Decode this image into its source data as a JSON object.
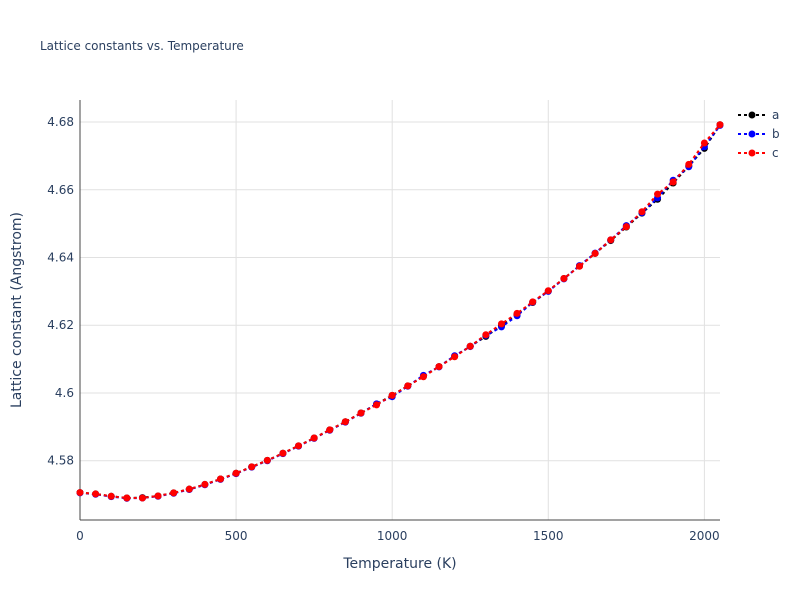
{
  "chart_data": {
    "type": "line",
    "title": "Lattice constants vs. Temperature",
    "xlabel": "Temperature (K)",
    "ylabel": "Lattice constant (Angstrom)",
    "xlim": [
      0,
      2050
    ],
    "ylim": [
      4.5625,
      4.6865
    ],
    "x_ticks": [
      0,
      500,
      1000,
      1500,
      2000
    ],
    "y_ticks": [
      4.58,
      4.6,
      4.62,
      4.64,
      4.66,
      4.68
    ],
    "x_tick_labels": [
      "0",
      "500",
      "1000",
      "1500",
      "2000"
    ],
    "y_tick_labels": [
      "4.58",
      "4.6",
      "4.62",
      "4.64",
      "4.66",
      "4.68"
    ],
    "grid": true,
    "legend_position": "top-right",
    "x": [
      0,
      50,
      100,
      150,
      200,
      250,
      300,
      350,
      400,
      450,
      500,
      550,
      600,
      650,
      700,
      750,
      800,
      850,
      900,
      950,
      1000,
      1050,
      1100,
      1150,
      1200,
      1250,
      1300,
      1350,
      1400,
      1450,
      1500,
      1550,
      1600,
      1650,
      1700,
      1750,
      1800,
      1850,
      1900,
      1950,
      2000,
      2050
    ],
    "series": [
      {
        "name": "a",
        "color": "#000000",
        "values": [
          4.5706,
          4.5702,
          4.5695,
          4.569,
          4.5691,
          4.5696,
          4.5705,
          4.5716,
          4.573,
          4.5746,
          4.5763,
          4.5782,
          4.5801,
          4.5822,
          4.5844,
          4.5867,
          4.5891,
          4.5915,
          4.5941,
          4.5967,
          4.5993,
          4.6021,
          4.6049,
          4.6078,
          4.6108,
          4.6138,
          4.6167,
          4.6199,
          4.6233,
          4.6267,
          4.6301,
          4.6338,
          4.6375,
          4.6412,
          4.645,
          4.649,
          4.6531,
          4.6572,
          4.662,
          4.667,
          4.6722,
          4.6792
        ]
      },
      {
        "name": "b",
        "color": "#0000ff",
        "values": [
          4.5705,
          4.5701,
          4.5694,
          4.5689,
          4.569,
          4.5695,
          4.5704,
          4.5715,
          4.5729,
          4.5745,
          4.5762,
          4.5781,
          4.58,
          4.5821,
          4.5843,
          4.5866,
          4.589,
          4.5914,
          4.594,
          4.5968,
          4.5989,
          4.602,
          4.6052,
          4.6077,
          4.611,
          4.6137,
          4.617,
          4.6195,
          4.6228,
          4.6268,
          4.63,
          4.6337,
          4.6376,
          4.6413,
          4.6452,
          4.6494,
          4.6532,
          4.6576,
          4.6628,
          4.6668,
          4.6727,
          4.679
        ]
      },
      {
        "name": "c",
        "color": "#ff0000",
        "values": [
          4.5706,
          4.5702,
          4.5695,
          4.569,
          4.569,
          4.5696,
          4.5705,
          4.5716,
          4.573,
          4.5746,
          4.5763,
          4.5782,
          4.5801,
          4.5822,
          4.5844,
          4.5867,
          4.5891,
          4.5915,
          4.5941,
          4.5965,
          4.5993,
          4.6021,
          4.6048,
          4.6078,
          4.6107,
          4.6138,
          4.6172,
          4.6204,
          4.6235,
          4.6269,
          4.6302,
          4.6338,
          4.6374,
          4.6412,
          4.6452,
          4.6491,
          4.6535,
          4.6587,
          4.6623,
          4.6675,
          4.6738,
          4.6792
        ]
      }
    ]
  }
}
